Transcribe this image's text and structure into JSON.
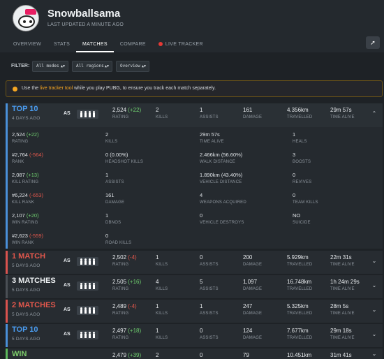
{
  "profile": {
    "name": "Snowballsama",
    "updated": "LAST UPDATED A MINUTE AGO"
  },
  "tabs": [
    "OVERVIEW",
    "STATS",
    "MATCHES",
    "COMPARE",
    "LIVE TRACKER"
  ],
  "share_icon": "share-icon",
  "filter": {
    "label": "FILTER:",
    "modes": "All modes",
    "regions": "All regions",
    "view": "Overview"
  },
  "notice": {
    "before": "Use the ",
    "link": "live tracker tool",
    "after": " while you play PUBG, to ensure you track each match separately."
  },
  "labels": {
    "rating": "RATING",
    "kills": "KILLS",
    "assists": "ASSISTS",
    "damage": "DAMAGE",
    "travelled": "TRAVELLED",
    "time_alive": "TIME ALIVE",
    "squad_icon": "squad-icon"
  },
  "matches": [
    {
      "place": "TOP 10",
      "ago": "4 DAYS AGO",
      "mode": "AS",
      "rating": "2,524",
      "rating_change": "(+22)",
      "kills": "2",
      "assists": "1",
      "damage": "161",
      "travelled": "4.356km",
      "time_alive": "29m 57s",
      "expanded": true
    },
    {
      "place": "1 MATCH",
      "ago": "5 DAYS AGO",
      "mode": "AS",
      "rating": "2,502",
      "rating_change": "(-4)",
      "kills": "1",
      "assists": "0",
      "damage": "200",
      "travelled": "5.929km",
      "time_alive": "22m 31s"
    },
    {
      "place": "3 MATCHES",
      "ago": "5 DAYS AGO",
      "mode": "AS",
      "rating": "2,505",
      "rating_change": "(+16)",
      "kills": "4",
      "assists": "5",
      "damage": "1,097",
      "travelled": "16.748km",
      "time_alive": "1h 24m 29s"
    },
    {
      "place": "2 MATCHES",
      "ago": "5 DAYS AGO",
      "mode": "AS",
      "rating": "2,489",
      "rating_change": "(-4)",
      "kills": "1",
      "assists": "1",
      "damage": "247",
      "travelled": "5.325km",
      "time_alive": "28m 5s"
    },
    {
      "place": "TOP 10",
      "ago": "5 DAYS AGO",
      "mode": "AS",
      "rating": "2,497",
      "rating_change": "(+18)",
      "kills": "1",
      "assists": "0",
      "damage": "124",
      "travelled": "7.677km",
      "time_alive": "29m 18s"
    },
    {
      "place": "WIN",
      "ago": "",
      "mode": "AS",
      "rating": "2,479",
      "rating_change": "(+39)",
      "kills": "2",
      "assists": "0",
      "damage": "79",
      "travelled": "10.451km",
      "time_alive": "31m 41s"
    }
  ],
  "details": {
    "col1": [
      {
        "value": "2,524",
        "change": "(+22)",
        "label": "RATING"
      },
      {
        "value": "#2,764",
        "change": "(-564)",
        "label": "RANK"
      },
      {
        "value": "2,087",
        "change": "(+13)",
        "label": "KILL RATING"
      },
      {
        "value": "#6,224",
        "change": "(-653)",
        "label": "KILL RANK"
      },
      {
        "value": "2,107",
        "change": "(+20)",
        "label": "WIN RATING"
      },
      {
        "value": "#2,623",
        "change": "(-559)",
        "label": "WIN RANK"
      }
    ],
    "col2": [
      {
        "value": "2",
        "label": "KILLS"
      },
      {
        "value": "0 (0.00%)",
        "label": "HEADSHOT KILLS"
      },
      {
        "value": "1",
        "label": "ASSISTS"
      },
      {
        "value": "161",
        "label": "DAMAGE"
      },
      {
        "value": "1",
        "label": "DBNOS"
      },
      {
        "value": "0",
        "label": "ROAD KILLS"
      }
    ],
    "col3": [
      {
        "value": "29m 57s",
        "label": "TIME ALIVE"
      },
      {
        "value": "2.466km (56.60%)",
        "label": "WALK DISTANCE"
      },
      {
        "value": "1.890km (43.40%)",
        "label": "VEHICLE DISTANCE"
      },
      {
        "value": "4",
        "label": "WEAPONS ACQUIRED"
      },
      {
        "value": "0",
        "label": "VEHICLE DESTROYS"
      }
    ],
    "col4": [
      {
        "value": "1",
        "label": "HEALS"
      },
      {
        "value": "3",
        "label": "BOOSTS"
      },
      {
        "value": "0",
        "label": "REVIVES"
      },
      {
        "value": "0",
        "label": "TEAM KILLS"
      },
      {
        "value": "NO",
        "label": "SUICIDE"
      }
    ]
  },
  "colors": {
    "top10": "#4a9cf0",
    "loss": "#e2574c",
    "win": "#7ccc6a",
    "accent": "#f5a623"
  }
}
